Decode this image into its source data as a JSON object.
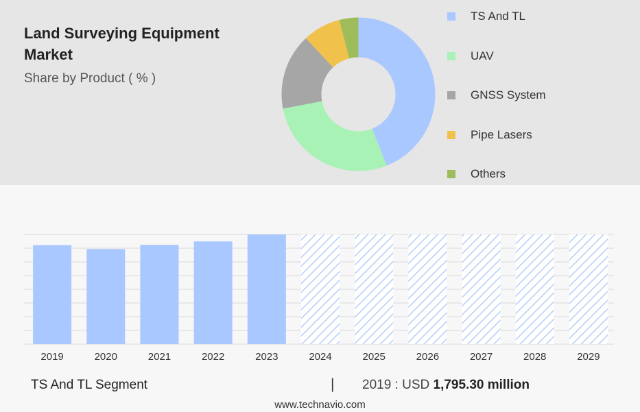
{
  "header": {
    "title": "Land Surveying Equipment Market",
    "subtitle": "Share by Product ( % )"
  },
  "footer": {
    "segment": "TS And TL Segment",
    "divider": "|",
    "year_label": "2019 : USD",
    "value": "1,795.30 million",
    "url": "www.technavio.com"
  },
  "colors": {
    "ts_and_tl": "#a8c8ff",
    "uav": "#a9f2b6",
    "gnss": "#a6a6a6",
    "pipe_lasers": "#f0c14b",
    "others": "#9ebd5a",
    "hatch": "#b5cff8"
  },
  "chart_data": [
    {
      "type": "pie",
      "title": "Share by Product ( % )",
      "donut": true,
      "categories": [
        "TS And TL",
        "UAV",
        "GNSS System",
        "Pipe Lasers",
        "Others"
      ],
      "values": [
        44,
        28,
        16,
        8,
        4
      ],
      "legend": "right"
    },
    {
      "type": "bar",
      "categories": [
        "2019",
        "2020",
        "2021",
        "2022",
        "2023",
        "2024",
        "2025",
        "2026",
        "2027",
        "2028",
        "2029"
      ],
      "values": [
        1795.3,
        1723,
        1800,
        1862,
        1988,
        1988,
        1988,
        1988,
        1988,
        1988,
        1988
      ],
      "forecast_from": "2024",
      "ylim": [
        0,
        1988
      ],
      "grid": true,
      "xlabel": "",
      "ylabel": ""
    }
  ]
}
